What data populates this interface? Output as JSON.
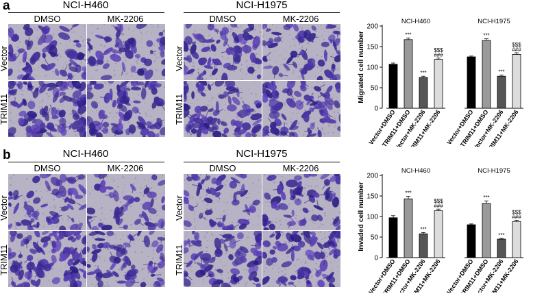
{
  "panels": [
    {
      "letter": "a",
      "cell_lines": [
        "NCI-H460",
        "NCI-H1975"
      ],
      "treatments": [
        "DMSO",
        "MK-2206"
      ],
      "rows": [
        "Vector",
        "TRIM11"
      ]
    },
    {
      "letter": "b",
      "cell_lines": [
        "NCI-H460",
        "NCI-H1975"
      ],
      "treatments": [
        "DMSO",
        "MK-2206"
      ],
      "rows": [
        "Vector",
        "TRIM11"
      ]
    }
  ],
  "colors": {
    "stain_light": "#b7b2c4",
    "stain_dark": "#3b2d8c",
    "bar_fills": [
      "#000000",
      "#9a9a9a",
      "#555555",
      "#dcdcdc"
    ]
  },
  "chart_data": [
    {
      "type": "bar",
      "ylabel": "Migrated cell number",
      "ylim": [
        0,
        200
      ],
      "yticks": [
        0,
        50,
        100,
        150,
        200
      ],
      "groups": [
        {
          "name": "NCI-H460",
          "categories": [
            "Vector+DMSO",
            "TRIM11+DMSO",
            "Vector+MK-2206",
            "TRIM11+MK-2206"
          ],
          "values": [
            107,
            167,
            75,
            119
          ],
          "errors": [
            3,
            4,
            3,
            3
          ],
          "annotations": [
            "",
            "***",
            "***",
            "$$$\n###"
          ]
        },
        {
          "name": "NCI-H1975",
          "categories": [
            "Vector+DMSO",
            "TRIM11+DMSO",
            "Vector+MK-2206",
            "TRIM11+MK-2206"
          ],
          "values": [
            125,
            165,
            78,
            131
          ],
          "errors": [
            2,
            4,
            3,
            4
          ],
          "annotations": [
            "",
            "***",
            "***",
            "$$$\n###"
          ]
        }
      ]
    },
    {
      "type": "bar",
      "ylabel": "Invaded cell number",
      "ylim": [
        0,
        200
      ],
      "yticks": [
        0,
        50,
        100,
        150,
        200
      ],
      "groups": [
        {
          "name": "NCI-H460",
          "categories": [
            "Vector+DMSO",
            "TRIM11+DMSO",
            "Vector+MK-2206",
            "TRIM11+MK-2206"
          ],
          "values": [
            97,
            143,
            58,
            114
          ],
          "errors": [
            5,
            6,
            3,
            4
          ],
          "annotations": [
            "",
            "***",
            "***",
            "$$$\n###"
          ]
        },
        {
          "name": "NCI-H1975",
          "categories": [
            "Vector+DMSO",
            "TRIM11+DMSO",
            "Vector+MK-2206",
            "TRIM11+MK-2206"
          ],
          "values": [
            80,
            132,
            45,
            88
          ],
          "errors": [
            2,
            6,
            2,
            3
          ],
          "annotations": [
            "",
            "***",
            "***",
            "$$$\n###"
          ]
        }
      ]
    }
  ]
}
